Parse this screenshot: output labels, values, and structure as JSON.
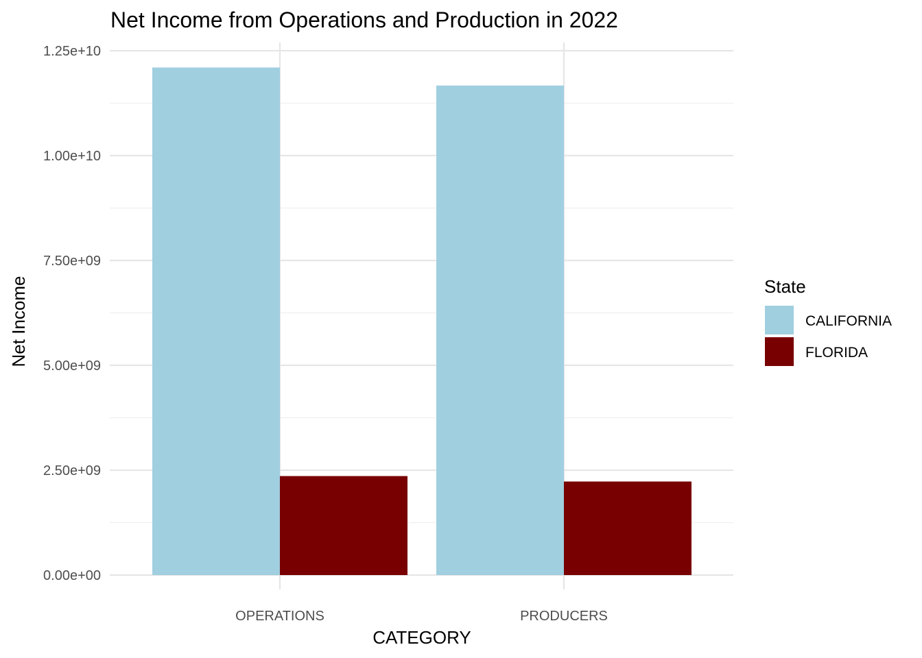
{
  "chart_data": {
    "type": "bar",
    "title": "Net Income from Operations and Production in 2022",
    "xlabel": "CATEGORY",
    "ylabel": "Net Income",
    "categories": [
      "OPERATIONS",
      "PRODUCERS"
    ],
    "series": [
      {
        "name": "CALIFORNIA",
        "color": "#a0cfe0",
        "values": [
          12100000000,
          11670000000
        ]
      },
      {
        "name": "FLORIDA",
        "color": "#780000",
        "values": [
          2360000000,
          2230000000
        ]
      }
    ],
    "ylim": [
      0,
      12500000000
    ],
    "yticks": [
      0,
      2500000000,
      5000000000,
      7500000000,
      10000000000,
      12500000000
    ],
    "ytick_labels": [
      "0.00e+00",
      "2.50e+09",
      "5.00e+09",
      "7.50e+09",
      "1.00e+10",
      "1.25e+10"
    ],
    "legend": {
      "title": "State",
      "position": "right"
    },
    "grid": true
  }
}
